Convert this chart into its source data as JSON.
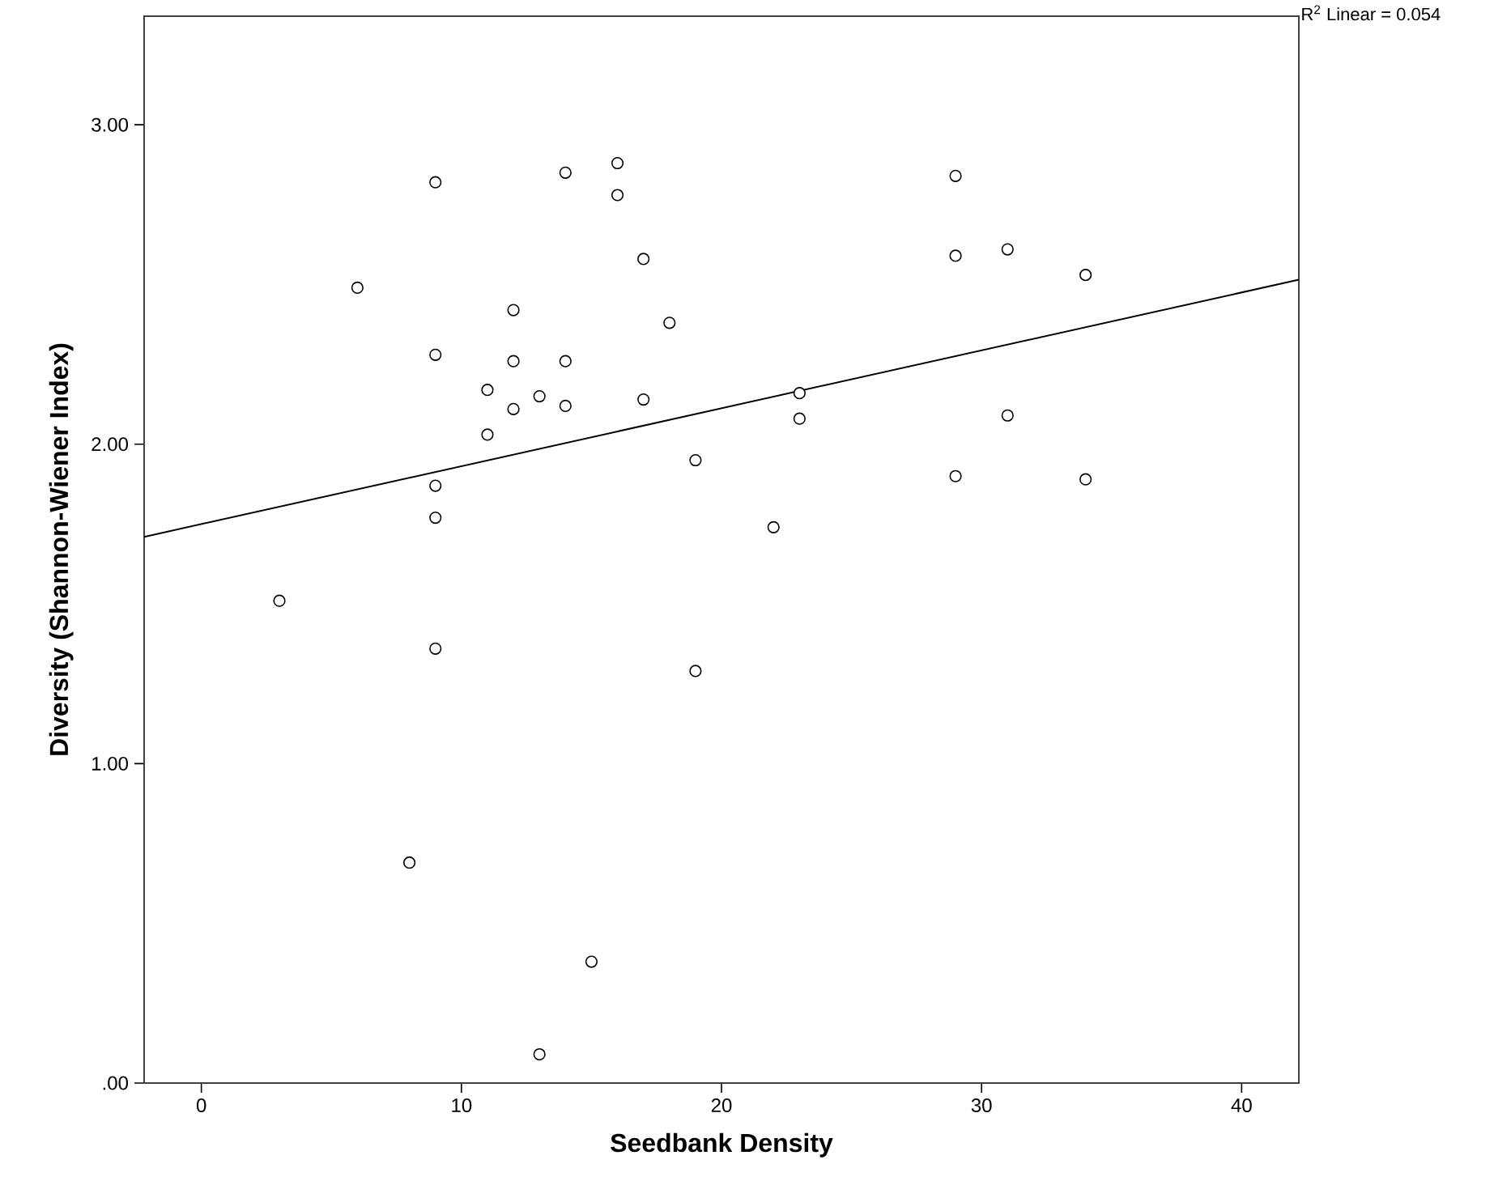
{
  "chart_data": {
    "type": "scatter",
    "xlabel": "Seedbank Density",
    "ylabel": "Diversity (Shannon-Wiener Index)",
    "xlim": [
      -2.2,
      42.2
    ],
    "ylim": [
      0,
      3.34
    ],
    "xticks": [
      0,
      10,
      20,
      30,
      40
    ],
    "yticks": [
      {
        "value": 0,
        "label": ".00"
      },
      {
        "value": 1,
        "label": "1.00"
      },
      {
        "value": 2,
        "label": "2.00"
      },
      {
        "value": 3,
        "label": "3.00"
      }
    ],
    "grid": false,
    "annotations": [
      "R$^{2}$ Linear = 0.054"
    ],
    "series": [
      {
        "color": "#000000",
        "marker": "circle",
        "x": [
          3,
          6,
          8,
          9,
          9,
          9,
          9,
          9,
          11,
          11,
          12,
          12,
          12,
          13,
          13,
          14,
          14,
          14,
          15,
          16,
          16,
          17,
          17,
          18,
          19,
          19,
          22,
          23,
          23,
          29,
          29,
          29,
          31,
          31,
          34,
          34
        ],
        "values": [
          1.51,
          2.49,
          0.69,
          2.82,
          2.28,
          1.87,
          1.77,
          1.36,
          2.17,
          2.03,
          2.42,
          2.26,
          2.11,
          2.15,
          0.09,
          2.85,
          2.26,
          2.12,
          0.38,
          2.88,
          2.78,
          2.58,
          2.14,
          2.38,
          1.95,
          1.29,
          1.74,
          2.16,
          2.08,
          2.84,
          2.59,
          1.9,
          2.61,
          2.09,
          2.53,
          1.89
        ]
      },
      {
        "type": "line",
        "color": "#000000",
        "line_style": "solid",
        "x": [
          -2.2,
          42.2
        ],
        "values": [
          1.71,
          2.515
        ]
      }
    ]
  }
}
